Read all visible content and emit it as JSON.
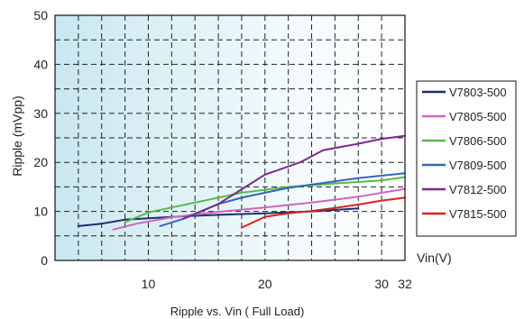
{
  "chart_data": {
    "type": "line",
    "title": "",
    "caption": "Ripple vs. Vin ( Full Load)",
    "xlabel": "Vin(V)",
    "ylabel": "Ripple (mVpp)",
    "xlim": [
      2,
      32
    ],
    "ylim": [
      0,
      50
    ],
    "x_ticks": [
      10,
      20,
      30,
      32
    ],
    "y_ticks": [
      0,
      10,
      20,
      30,
      40,
      50
    ],
    "grid": true,
    "legend_position": "right",
    "series": [
      {
        "name": "V7803-500",
        "color": "#1f2d6e",
        "points": [
          [
            4,
            7
          ],
          [
            6,
            7.5
          ],
          [
            8,
            8.3
          ],
          [
            10,
            8.6
          ],
          [
            13,
            9
          ],
          [
            16,
            9.3
          ],
          [
            20,
            9.6
          ],
          [
            24,
            10
          ],
          [
            28,
            10.6
          ]
        ]
      },
      {
        "name": "V7805-500",
        "color": "#cc66bb",
        "points": [
          [
            7,
            6.3
          ],
          [
            9,
            7.5
          ],
          [
            12,
            8.8
          ],
          [
            16,
            9.9
          ],
          [
            20,
            10.8
          ],
          [
            24,
            11.8
          ],
          [
            28,
            13
          ],
          [
            32,
            14.6
          ]
        ]
      },
      {
        "name": "V7806-500",
        "color": "#55bb44",
        "points": [
          [
            8,
            7.8
          ],
          [
            10,
            9.8
          ],
          [
            14,
            11.8
          ],
          [
            18,
            13.8
          ],
          [
            22,
            15
          ],
          [
            26,
            15.7
          ],
          [
            30,
            16.3
          ],
          [
            32,
            17
          ]
        ]
      },
      {
        "name": "V7809-500",
        "color": "#3366bb",
        "points": [
          [
            11,
            7
          ],
          [
            13,
            8.5
          ],
          [
            16,
            11.5
          ],
          [
            18,
            12.8
          ],
          [
            20,
            13.8
          ],
          [
            22,
            14.8
          ],
          [
            25,
            15.8
          ],
          [
            28,
            16.8
          ],
          [
            32,
            17.8
          ]
        ]
      },
      {
        "name": "V7812-500",
        "color": "#7a2a88",
        "points": [
          [
            13,
            8.5
          ],
          [
            16,
            11.5
          ],
          [
            18,
            14.5
          ],
          [
            20,
            17.5
          ],
          [
            23,
            20
          ],
          [
            25,
            22.5
          ],
          [
            28,
            23.8
          ],
          [
            30,
            24.8
          ],
          [
            32,
            25.4
          ]
        ]
      },
      {
        "name": "V7815-500",
        "color": "#e02020",
        "points": [
          [
            18,
            6.7
          ],
          [
            20,
            8.9
          ],
          [
            22,
            9.6
          ],
          [
            24,
            10.1
          ],
          [
            26,
            10.7
          ],
          [
            28,
            11.4
          ],
          [
            30,
            12.2
          ],
          [
            32,
            12.8
          ]
        ]
      }
    ]
  }
}
